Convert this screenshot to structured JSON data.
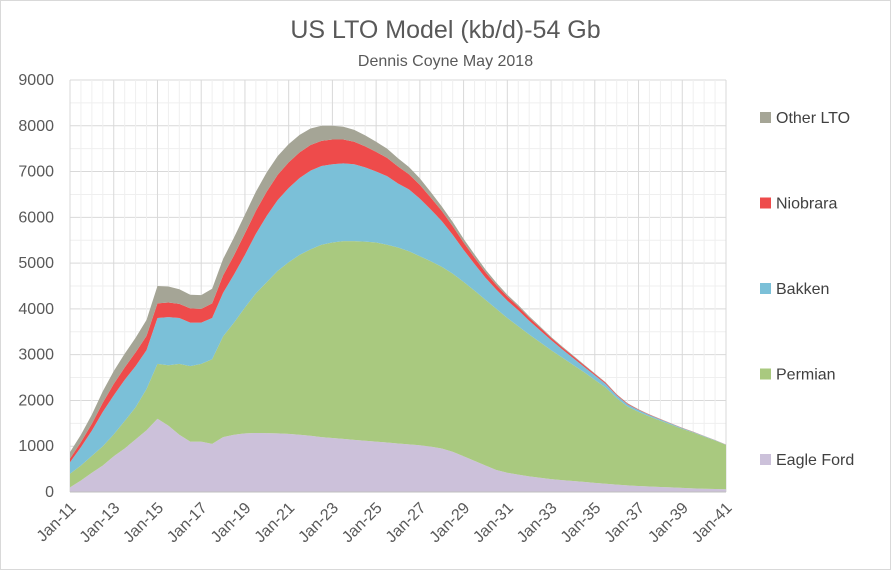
{
  "chart_data": {
    "type": "area",
    "stacked": true,
    "title": "US LTO Model (kb/d)-54 Gb",
    "subtitle": "Dennis Coyne May 2018",
    "xlabel": "",
    "ylabel": "",
    "ylim": [
      0,
      9000
    ],
    "yticks": [
      0,
      1000,
      2000,
      3000,
      4000,
      5000,
      6000,
      7000,
      8000,
      9000
    ],
    "xticks": [
      "Jan-11",
      "Jan-13",
      "Jan-15",
      "Jan-17",
      "Jan-19",
      "Jan-21",
      "Jan-23",
      "Jan-25",
      "Jan-27",
      "Jan-29",
      "Jan-31",
      "Jan-33",
      "Jan-35",
      "Jan-37",
      "Jan-39",
      "Jan-41"
    ],
    "grid": true,
    "legend_position": "right",
    "x": [
      "Jan-11",
      "Jul-11",
      "Jan-12",
      "Jul-12",
      "Jan-13",
      "Jul-13",
      "Jan-14",
      "Jul-14",
      "Jan-15",
      "Jul-15",
      "Jan-16",
      "Jul-16",
      "Jan-17",
      "Jul-17",
      "Jan-18",
      "Jul-18",
      "Jan-19",
      "Jul-19",
      "Jan-20",
      "Jul-20",
      "Jan-21",
      "Jul-21",
      "Jan-22",
      "Jul-22",
      "Jan-23",
      "Jul-23",
      "Jan-24",
      "Jul-24",
      "Jan-25",
      "Jul-25",
      "Jan-26",
      "Jul-26",
      "Jan-27",
      "Jul-27",
      "Jan-28",
      "Jul-28",
      "Jan-29",
      "Jul-29",
      "Jan-30",
      "Jul-30",
      "Jan-31",
      "Jul-31",
      "Jan-32",
      "Jul-32",
      "Jan-33",
      "Jul-33",
      "Jan-34",
      "Jul-34",
      "Jan-35",
      "Jul-35",
      "Jan-36",
      "Jul-36",
      "Jan-37",
      "Jul-37",
      "Jan-38",
      "Jul-38",
      "Jan-39",
      "Jul-39",
      "Jan-40",
      "Jul-40",
      "Jan-41"
    ],
    "series": [
      {
        "name": "Eagle Ford",
        "color": "#ccc1da",
        "values": [
          100,
          250,
          420,
          580,
          780,
          950,
          1150,
          1350,
          1600,
          1450,
          1250,
          1100,
          1100,
          1050,
          1200,
          1250,
          1280,
          1290,
          1285,
          1280,
          1270,
          1250,
          1230,
          1200,
          1180,
          1160,
          1140,
          1120,
          1100,
          1080,
          1060,
          1040,
          1020,
          990,
          950,
          880,
          780,
          680,
          580,
          480,
          420,
          380,
          340,
          310,
          280,
          260,
          240,
          220,
          200,
          180,
          160,
          145,
          130,
          120,
          110,
          100,
          90,
          80,
          70,
          65,
          60
        ]
      },
      {
        "name": "Permian",
        "color": "#a9c97f",
        "values": [
          300,
          330,
          370,
          420,
          480,
          600,
          700,
          900,
          1200,
          1320,
          1550,
          1650,
          1700,
          1850,
          2200,
          2450,
          2750,
          3050,
          3300,
          3550,
          3750,
          3930,
          4070,
          4200,
          4270,
          4320,
          4340,
          4350,
          4350,
          4320,
          4280,
          4220,
          4130,
          4050,
          3970,
          3890,
          3810,
          3720,
          3620,
          3520,
          3380,
          3240,
          3100,
          2960,
          2820,
          2680,
          2540,
          2400,
          2250,
          2100,
          1890,
          1720,
          1620,
          1530,
          1450,
          1370,
          1290,
          1220,
          1140,
          1060,
          970
        ]
      },
      {
        "name": "Bakken",
        "color": "#7bc0d8",
        "values": [
          250,
          400,
          550,
          750,
          850,
          900,
          900,
          850,
          1000,
          1050,
          1000,
          950,
          900,
          900,
          950,
          1050,
          1150,
          1300,
          1450,
          1550,
          1620,
          1680,
          1720,
          1720,
          1710,
          1700,
          1680,
          1620,
          1550,
          1500,
          1400,
          1350,
          1260,
          1130,
          1000,
          850,
          700,
          580,
          480,
          420,
          380,
          350,
          300,
          260,
          220,
          180,
          150,
          120,
          100,
          80,
          60,
          50,
          40,
          30,
          25,
          20,
          15,
          12,
          10,
          8,
          5
        ]
      },
      {
        "name": "Niobrara",
        "color": "#ee4b4b",
        "values": [
          80,
          110,
          150,
          200,
          250,
          270,
          300,
          310,
          320,
          320,
          310,
          310,
          300,
          320,
          380,
          420,
          470,
          500,
          530,
          550,
          560,
          560,
          560,
          550,
          540,
          520,
          490,
          460,
          430,
          400,
          370,
          330,
          300,
          260,
          220,
          190,
          160,
          140,
          120,
          100,
          90,
          80,
          70,
          60,
          50,
          45,
          40,
          35,
          30,
          25,
          20,
          15,
          12,
          10,
          8,
          6,
          5,
          4,
          3,
          2,
          2
        ]
      },
      {
        "name": "Other LTO",
        "color": "#a5a596",
        "values": [
          140,
          160,
          200,
          250,
          280,
          300,
          320,
          350,
          380,
          350,
          320,
          300,
          300,
          320,
          360,
          390,
          410,
          420,
          420,
          410,
          400,
          380,
          360,
          330,
          300,
          280,
          260,
          240,
          220,
          200,
          180,
          160,
          140,
          120,
          100,
          90,
          80,
          70,
          60,
          50,
          40,
          35,
          30,
          25,
          20,
          18,
          16,
          14,
          12,
          10,
          9,
          8,
          7,
          6,
          5,
          4,
          3,
          3,
          2,
          2,
          1
        ]
      }
    ],
    "legend_order": [
      "Other LTO",
      "Niobrara",
      "Bakken",
      "Permian",
      "Eagle Ford"
    ]
  }
}
